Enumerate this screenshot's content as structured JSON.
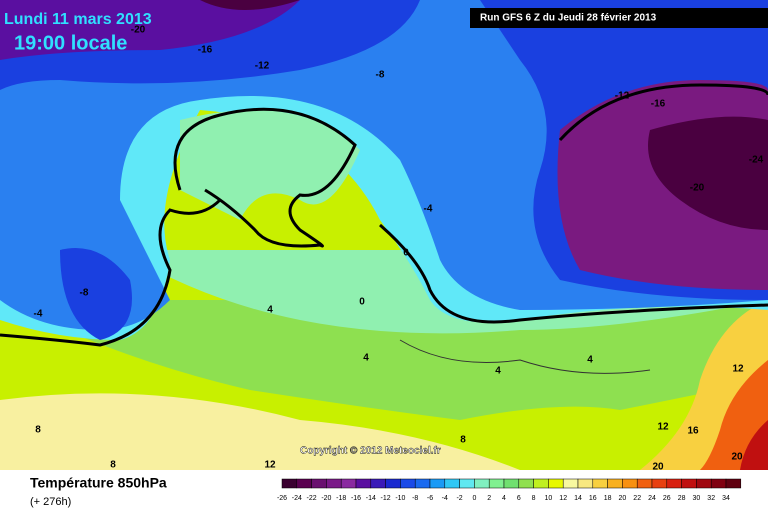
{
  "header": {
    "date": "Lundi 11 mars 2013",
    "time": "19:00 locale",
    "run": "Run GFS 6 Z du Jeudi 28 février 2013"
  },
  "copyright": "Copyright © 2012 Meteociel.fr",
  "footer": {
    "title": "Température 850hPa",
    "lead": "(+ 276h)"
  },
  "contour_labels": [
    "-20",
    "-16",
    "-12",
    "-8",
    "-12",
    "-16",
    "-24",
    "-20",
    "-4",
    "0",
    "-8",
    "-4",
    "4",
    "0",
    "4",
    "4",
    "4",
    "8",
    "8",
    "12",
    "8",
    "12",
    "16",
    "12",
    "20",
    "20"
  ],
  "legend": {
    "ticks": [
      -26,
      -24,
      -22,
      -20,
      -18,
      -16,
      -14,
      -12,
      -10,
      -8,
      -6,
      -4,
      -2,
      0,
      2,
      4,
      6,
      8,
      10,
      12,
      14,
      16,
      18,
      20,
      22,
      24,
      26,
      28,
      30,
      32,
      34
    ],
    "colors": [
      "#3a0030",
      "#5a0050",
      "#6a1070",
      "#7a1a88",
      "#8a2aa0",
      "#5a0fa0",
      "#3a1ab8",
      "#1a2ad0",
      "#1a4ae8",
      "#1a6af0",
      "#1a9af5",
      "#30c8f5",
      "#60e8f0",
      "#80f0c0",
      "#80f090",
      "#70e070",
      "#90e050",
      "#c0f020",
      "#e8f800",
      "#f8f8a0",
      "#f8e880",
      "#f8d040",
      "#f8b020",
      "#f89010",
      "#f06010",
      "#e84010",
      "#d82010",
      "#c01010",
      "#a00810",
      "#800010",
      "#600010"
    ]
  }
}
